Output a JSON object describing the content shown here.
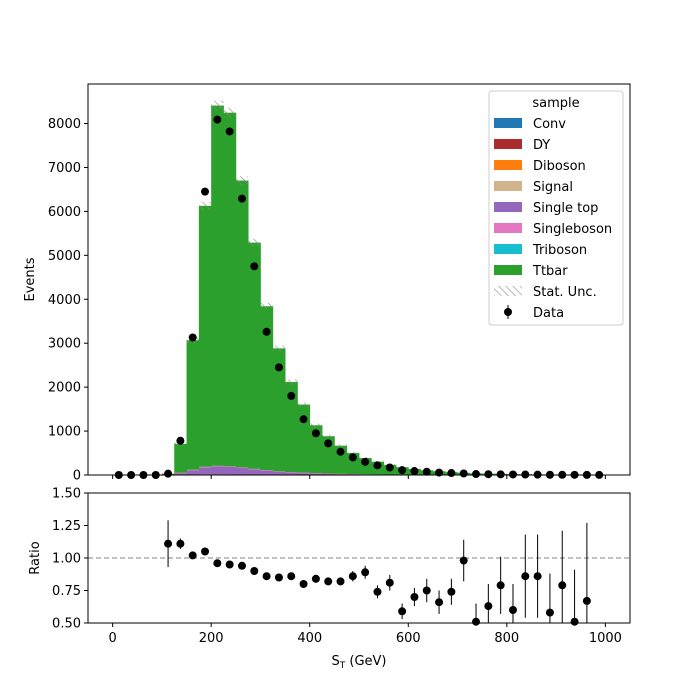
{
  "chart_data": {
    "type": "stacked-histogram-with-ratio",
    "top_panel": {
      "ylabel": "Events",
      "ylim": [
        0,
        8900
      ],
      "yticks": [
        0,
        1000,
        2000,
        3000,
        4000,
        5000,
        6000,
        7000,
        8000
      ],
      "xlim": [
        -50,
        1050
      ],
      "bin_edges": [
        0,
        25,
        50,
        75,
        100,
        125,
        150,
        175,
        200,
        225,
        250,
        275,
        300,
        325,
        350,
        375,
        400,
        425,
        450,
        475,
        500,
        525,
        550,
        575,
        600,
        625,
        650,
        675,
        700,
        725,
        750,
        775,
        800,
        825,
        850,
        875,
        900,
        925,
        950,
        975,
        1000
      ],
      "stack_order": [
        "Conv",
        "DY",
        "Diboson",
        "Signal",
        "Single top",
        "Singleboson",
        "Triboson",
        "Ttbar"
      ],
      "series": [
        {
          "name": "Conv",
          "color": "#1f77b4",
          "values": [
            0,
            0,
            0,
            0,
            0,
            0,
            0,
            0,
            0,
            0,
            0,
            0,
            0,
            0,
            0,
            0,
            0,
            0,
            0,
            0,
            0,
            0,
            0,
            0,
            0,
            0,
            0,
            0,
            0,
            0,
            0,
            0,
            0,
            0,
            0,
            0,
            0,
            0,
            0,
            0
          ]
        },
        {
          "name": "DY",
          "color": "#aa2d2d",
          "values": [
            0,
            0,
            0,
            0,
            1,
            2,
            3,
            4,
            4,
            4,
            3,
            3,
            2,
            2,
            2,
            1,
            1,
            1,
            1,
            1,
            0,
            0,
            0,
            0,
            0,
            0,
            0,
            0,
            0,
            0,
            0,
            0,
            0,
            0,
            0,
            0,
            0,
            0,
            0,
            0
          ]
        },
        {
          "name": "Diboson",
          "color": "#ff7f0e",
          "values": [
            0,
            0,
            0,
            0,
            0,
            2,
            4,
            6,
            6,
            5,
            4,
            4,
            3,
            2,
            2,
            1,
            1,
            1,
            1,
            1,
            0,
            0,
            0,
            0,
            0,
            0,
            0,
            0,
            0,
            0,
            0,
            0,
            0,
            0,
            0,
            0,
            0,
            0,
            0,
            0
          ]
        },
        {
          "name": "Signal",
          "color": "#d2b48c",
          "values": [
            0,
            0,
            0,
            0,
            0,
            1,
            2,
            3,
            3,
            3,
            2,
            2,
            2,
            1,
            1,
            1,
            1,
            0,
            0,
            0,
            0,
            0,
            0,
            0,
            0,
            0,
            0,
            0,
            0,
            0,
            0,
            0,
            0,
            0,
            0,
            0,
            0,
            0,
            0,
            0
          ]
        },
        {
          "name": "Single top",
          "color": "#9467bd",
          "values": [
            0,
            0,
            0,
            0,
            3,
            40,
            100,
            160,
            180,
            170,
            150,
            120,
            95,
            70,
            55,
            45,
            35,
            28,
            22,
            18,
            14,
            11,
            9,
            7,
            6,
            5,
            4,
            3,
            3,
            2,
            2,
            2,
            1,
            1,
            1,
            1,
            1,
            1,
            1,
            1
          ]
        },
        {
          "name": "Singleboson",
          "color": "#e377c2",
          "values": [
            0,
            0,
            0,
            0,
            1,
            5,
            10,
            14,
            16,
            15,
            13,
            11,
            9,
            7,
            6,
            5,
            4,
            3,
            3,
            2,
            2,
            2,
            1,
            1,
            1,
            1,
            1,
            1,
            1,
            0,
            0,
            0,
            0,
            0,
            0,
            0,
            0,
            0,
            0,
            0
          ]
        },
        {
          "name": "Triboson",
          "color": "#17becf",
          "values": [
            0,
            0,
            0,
            0,
            0,
            0,
            0,
            0,
            0,
            0,
            0,
            0,
            0,
            0,
            0,
            0,
            0,
            0,
            0,
            0,
            0,
            0,
            0,
            0,
            0,
            0,
            0,
            0,
            0,
            0,
            0,
            0,
            0,
            0,
            0,
            0,
            0,
            0,
            0,
            0
          ]
        },
        {
          "name": "Ttbar",
          "color": "#2ca02c",
          "values": [
            0,
            0,
            0,
            0,
            25,
            660,
            2950,
            5940,
            8200,
            8050,
            6530,
            5150,
            3730,
            2800,
            2050,
            1550,
            1090,
            850,
            640,
            480,
            370,
            290,
            220,
            170,
            130,
            100,
            80,
            60,
            45,
            35,
            30,
            25,
            20,
            15,
            12,
            10,
            8,
            6,
            5,
            4
          ]
        }
      ],
      "stat_unc_label": "Stat. Unc.",
      "data": {
        "name": "Data",
        "x": [
          12.5,
          37.5,
          62.5,
          87.5,
          112.5,
          137.5,
          162.5,
          187.5,
          212.5,
          237.5,
          262.5,
          287.5,
          312.5,
          337.5,
          362.5,
          387.5,
          412.5,
          437.5,
          462.5,
          487.5,
          512.5,
          537.5,
          562.5,
          587.5,
          612.5,
          637.5,
          662.5,
          687.5,
          712.5,
          737.5,
          762.5,
          787.5,
          812.5,
          837.5,
          862.5,
          887.5,
          912.5,
          937.5,
          962.5,
          987.5
        ],
        "y": [
          0,
          0,
          0,
          0,
          30,
          780,
          3130,
          6450,
          8090,
          7820,
          6290,
          4750,
          3260,
          2450,
          1800,
          1270,
          950,
          720,
          530,
          400,
          300,
          220,
          170,
          110,
          90,
          75,
          55,
          45,
          35,
          22,
          18,
          15,
          12,
          10,
          8,
          6,
          5,
          4,
          3,
          2
        ]
      }
    },
    "bottom_panel": {
      "ylabel": "Ratio",
      "xlabel": "S_T (GeV)",
      "ylim": [
        0.5,
        1.5
      ],
      "yticks": [
        0.5,
        0.75,
        1.0,
        1.25,
        1.5
      ],
      "ytick_labels": [
        "0.50",
        "0.75",
        "1.00",
        "1.25",
        "1.50"
      ],
      "xticks": [
        0,
        200,
        400,
        600,
        800,
        1000
      ],
      "reference_line": 1.0,
      "x": [
        112.5,
        137.5,
        162.5,
        187.5,
        212.5,
        237.5,
        262.5,
        287.5,
        312.5,
        337.5,
        362.5,
        387.5,
        412.5,
        437.5,
        462.5,
        487.5,
        512.5,
        537.5,
        562.5,
        587.5,
        612.5,
        637.5,
        662.5,
        687.5,
        712.5,
        737.5,
        762.5,
        787.5,
        812.5,
        837.5,
        862.5,
        887.5,
        912.5,
        937.5,
        962.5
      ],
      "ratio": [
        1.11,
        1.11,
        1.02,
        1.05,
        0.96,
        0.95,
        0.94,
        0.9,
        0.86,
        0.85,
        0.86,
        0.8,
        0.84,
        0.82,
        0.82,
        0.86,
        0.89,
        0.74,
        0.81,
        0.59,
        0.7,
        0.75,
        0.66,
        0.74,
        0.98,
        0.51,
        0.63,
        0.79,
        0.6,
        0.86,
        0.86,
        0.58,
        0.79,
        0.51,
        0.67
      ],
      "err": [
        0.18,
        0.04,
        0.02,
        0.01,
        0.01,
        0.01,
        0.01,
        0.01,
        0.01,
        0.02,
        0.02,
        0.02,
        0.03,
        0.03,
        0.03,
        0.04,
        0.05,
        0.05,
        0.06,
        0.06,
        0.07,
        0.09,
        0.09,
        0.1,
        0.16,
        0.14,
        0.17,
        0.22,
        0.2,
        0.32,
        0.32,
        0.3,
        0.42,
        0.4,
        0.6
      ]
    },
    "legend": {
      "title": "sample",
      "location": "upper right",
      "entries": [
        "Conv",
        "DY",
        "Diboson",
        "Signal",
        "Single top",
        "Singleboson",
        "Triboson",
        "Ttbar",
        "Stat. Unc.",
        "Data"
      ]
    }
  }
}
